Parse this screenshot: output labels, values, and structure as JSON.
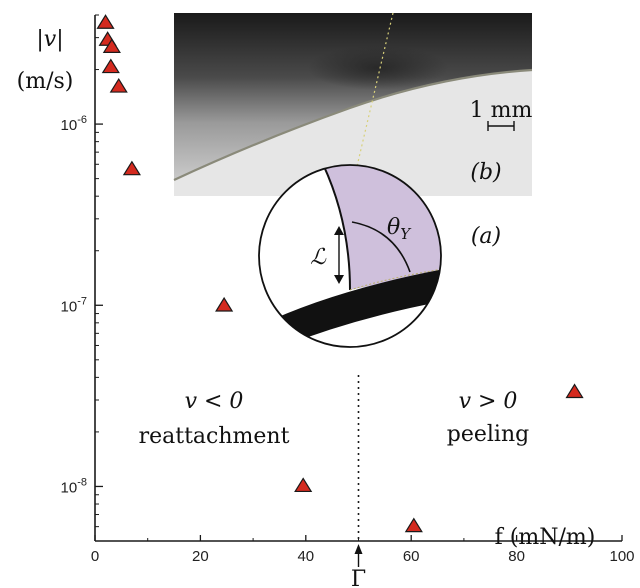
{
  "chart_data": {
    "type": "scatter",
    "title": "",
    "xlabel": "f (mN/m)",
    "ylabel": "|v| (m/s)",
    "x_axis": {
      "min": 0,
      "max": 100,
      "ticks": [
        0,
        20,
        40,
        60,
        80,
        100
      ],
      "tick_labels": [
        "0",
        "20",
        "40",
        "60",
        "80",
        "100"
      ]
    },
    "y_axis": {
      "scale": "log",
      "min": 5e-09,
      "max": 4e-06,
      "ticks": [
        1e-08,
        1e-07,
        1e-06
      ],
      "tick_labels": [
        "10-8",
        "10-7",
        "10-6"
      ]
    },
    "marker": {
      "shape": "triangle",
      "fill": "#d42a1f",
      "stroke": "#1a1a1a"
    },
    "points": [
      {
        "x": 2.0,
        "y": 3.6e-06
      },
      {
        "x": 2.4,
        "y": 2.9e-06
      },
      {
        "x": 3.2,
        "y": 2.65e-06
      },
      {
        "x": 3.0,
        "y": 2.05e-06
      },
      {
        "x": 4.5,
        "y": 1.6e-06
      },
      {
        "x": 7.0,
        "y": 5.6e-07
      },
      {
        "x": 24.5,
        "y": 9.9e-08
      },
      {
        "x": 39.5,
        "y": 1e-08
      },
      {
        "x": 60.5,
        "y": 6e-09
      },
      {
        "x": 91.0,
        "y": 3.3e-08
      }
    ],
    "threshold": {
      "x": 50,
      "label": "Γ"
    },
    "regions": [
      {
        "condition": "v < 0",
        "label": "reattachment"
      },
      {
        "condition": "v > 0",
        "label": "peeling"
      }
    ],
    "inset": {
      "photo_label": "(b)",
      "schematic_label": "(a)",
      "scale_bar": "1 mm",
      "angle_symbol": "θY",
      "length_symbol": "ℒ"
    }
  },
  "axis_label_parts": {
    "y_top": "|v|",
    "y_bottom": "(m/s)",
    "x_label": "f (mN/m)"
  }
}
